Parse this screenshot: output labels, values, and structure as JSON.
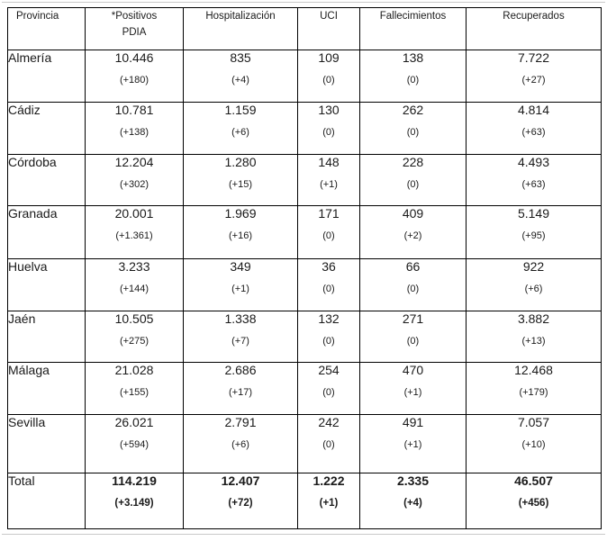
{
  "table": {
    "header": [
      {
        "key": "provincia",
        "lines": [
          "Provincia"
        ]
      },
      {
        "key": "positivos",
        "lines": [
          "*Positivos",
          "PDIA"
        ]
      },
      {
        "key": "hospitalizacion",
        "lines": [
          "Hospitalización"
        ]
      },
      {
        "key": "uci",
        "lines": [
          "UCI"
        ]
      },
      {
        "key": "fallecimientos",
        "lines": [
          "Fallecimientos"
        ]
      },
      {
        "key": "recuperados",
        "lines": [
          "Recuperados"
        ]
      }
    ],
    "rows": [
      {
        "provincia": "Almería",
        "cells": [
          {
            "value": "10.446",
            "delta": "(+180)"
          },
          {
            "value": "835",
            "delta": "(+4)"
          },
          {
            "value": "109",
            "delta": "(0)"
          },
          {
            "value": "138",
            "delta": "(0)"
          },
          {
            "value": "7.722",
            "delta": "(+27)"
          }
        ]
      },
      {
        "provincia": "Cádiz",
        "cells": [
          {
            "value": "10.781",
            "delta": "(+138)"
          },
          {
            "value": "1.159",
            "delta": "(+6)"
          },
          {
            "value": "130",
            "delta": "(0)"
          },
          {
            "value": "262",
            "delta": "(0)"
          },
          {
            "value": "4.814",
            "delta": "(+63)"
          }
        ]
      },
      {
        "provincia": "Córdoba",
        "cells": [
          {
            "value": "12.204",
            "delta": "(+302)"
          },
          {
            "value": "1.280",
            "delta": "(+15)"
          },
          {
            "value": "148",
            "delta": "(+1)"
          },
          {
            "value": "228",
            "delta": "(0)"
          },
          {
            "value": "4.493",
            "delta": "(+63)"
          }
        ]
      },
      {
        "provincia": "Granada",
        "cells": [
          {
            "value": "20.001",
            "delta": "(+1.361)"
          },
          {
            "value": "1.969",
            "delta": "(+16)"
          },
          {
            "value": "171",
            "delta": "(0)"
          },
          {
            "value": "409",
            "delta": "(+2)"
          },
          {
            "value": "5.149",
            "delta": "(+95)"
          }
        ]
      },
      {
        "provincia": "Huelva",
        "cells": [
          {
            "value": "3.233",
            "delta": "(+144)"
          },
          {
            "value": "349",
            "delta": "(+1)"
          },
          {
            "value": "36",
            "delta": "(0)"
          },
          {
            "value": "66",
            "delta": "(0)"
          },
          {
            "value": "922",
            "delta": "(+6)"
          }
        ]
      },
      {
        "provincia": "Jaén",
        "cells": [
          {
            "value": "10.505",
            "delta": "(+275)"
          },
          {
            "value": "1.338",
            "delta": "(+7)"
          },
          {
            "value": "132",
            "delta": "(0)"
          },
          {
            "value": "271",
            "delta": "(0)"
          },
          {
            "value": "3.882",
            "delta": "(+13)"
          }
        ]
      },
      {
        "provincia": "Málaga",
        "cells": [
          {
            "value": "21.028",
            "delta": "(+155)"
          },
          {
            "value": "2.686",
            "delta": "(+17)"
          },
          {
            "value": "254",
            "delta": "(0)"
          },
          {
            "value": "470",
            "delta": "(+1)"
          },
          {
            "value": "12.468",
            "delta": "(+179)"
          }
        ]
      },
      {
        "provincia": "Sevilla",
        "cells": [
          {
            "value": "26.021",
            "delta": "(+594)"
          },
          {
            "value": "2.791",
            "delta": "(+6)"
          },
          {
            "value": "242",
            "delta": "(0)"
          },
          {
            "value": "491",
            "delta": "(+1)"
          },
          {
            "value": "7.057",
            "delta": "(+10)"
          }
        ]
      }
    ],
    "total": {
      "provincia": "Total",
      "cells": [
        {
          "value": "114.219",
          "delta": "(+3.149)"
        },
        {
          "value": "12.407",
          "delta": "(+72)"
        },
        {
          "value": "1.222",
          "delta": "(+1)"
        },
        {
          "value": "2.335",
          "delta": "(+4)"
        },
        {
          "value": "46.507",
          "delta": "(+456)"
        }
      ]
    }
  },
  "colors": {
    "text": "#1a1a1a",
    "border": "#000000",
    "background": "#ffffff",
    "hairline": "#c9c9c9"
  }
}
